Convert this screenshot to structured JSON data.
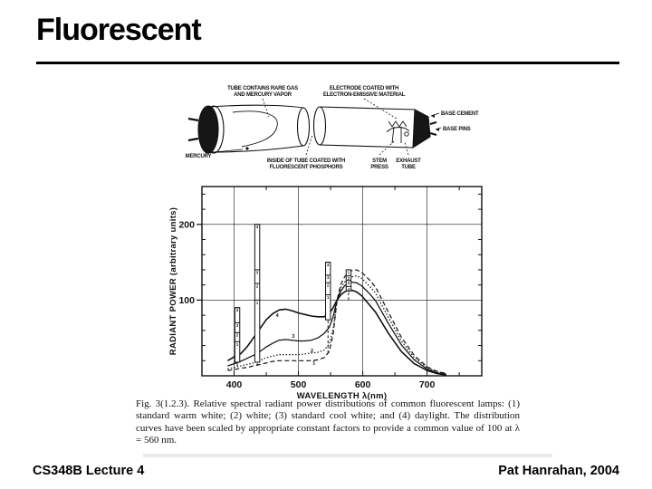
{
  "slide": {
    "title": "Fluorescent",
    "footer_left": "CS348B Lecture 4",
    "footer_right": "Pat Hanrahan, 2004"
  },
  "lamp_diagram": {
    "labels": {
      "tube_gas": [
        "TUBE CONTAINS RARE GAS",
        "AND MERCURY VAPOR"
      ],
      "electrode": [
        "ELECTRODE COATED WITH",
        "ELECTRON-EMISSIVE MATERIAL"
      ],
      "base_cement": [
        "BASE CEMENT"
      ],
      "base_pins": [
        "BASE PINS"
      ],
      "mercury": [
        "MERCURY"
      ],
      "phosphor": [
        "INSIDE OF TUBE COATED WITH",
        "FLUORESCENT PHOSPHORS"
      ],
      "stem_press": [
        "STEM",
        "PRESS"
      ],
      "exhaust_tube": [
        "EXHAUST",
        "TUBE"
      ]
    }
  },
  "figure_caption": "Fig. 3(1.2.3).  Relative spectral radiant power distributions of common fluorescent lamps: (1) standard warm white; (2) white; (3) standard cool white; and (4) daylight. The distribution curves have been scaled by appropriate constant factors to provide a common value of 100 at λ = 560 nm.",
  "chart_data": {
    "type": "line",
    "title": "",
    "xlabel": "WAVELENGTH λ(nm)",
    "ylabel": "RADIANT POWER (arbitrary units)",
    "xlim": [
      350,
      785
    ],
    "ylim": [
      0,
      250
    ],
    "x_ticks_major": [
      400,
      500,
      600,
      700
    ],
    "x_ticks_minor": [
      450,
      550,
      650,
      750
    ],
    "y_ticks_major": [
      100,
      200
    ],
    "y_ticks_minor": [
      20,
      40,
      60,
      80,
      120,
      140,
      160,
      180,
      220,
      240
    ],
    "grid": true,
    "legend_position": "none",
    "ink_color": "#111111",
    "x_shared": [
      390,
      400,
      410,
      420,
      430,
      440,
      450,
      460,
      470,
      480,
      490,
      500,
      510,
      520,
      530,
      540,
      548,
      554,
      560,
      566,
      572,
      580,
      590,
      598,
      610,
      620,
      640,
      660,
      680,
      700,
      715,
      730
    ],
    "series": [
      {
        "name": "(1) standard warm white",
        "label": "1",
        "style": "dashed",
        "dash": "5,3",
        "width": 1.2,
        "label_at": [
          524,
          15
        ],
        "y": [
          7,
          8,
          10,
          11,
          13,
          15,
          17,
          19,
          20,
          20,
          20,
          20,
          20,
          20,
          21,
          24,
          32,
          55,
          100,
          121,
          131,
          138,
          140,
          137,
          127,
          117,
          84,
          51,
          27,
          12,
          6,
          3
        ]
      },
      {
        "name": "(2) white",
        "label": "2",
        "style": "dotted",
        "dash": "1.5,2",
        "width": 1.2,
        "label_at": [
          521,
          31
        ],
        "y": [
          9,
          11,
          13,
          15,
          17,
          20,
          24,
          26,
          28,
          28,
          28,
          28,
          29,
          30,
          31,
          34,
          42,
          62,
          100,
          116,
          124,
          130,
          132,
          129,
          119,
          109,
          77,
          46,
          24,
          11,
          5,
          2
        ]
      },
      {
        "name": "(3) standard cool white",
        "label": "3",
        "style": "solid",
        "dash": "",
        "width": 1.25,
        "label_at": [
          492,
          50
        ],
        "y": [
          13,
          16,
          19,
          23,
          27,
          32,
          38,
          43,
          47,
          48,
          47,
          46,
          46,
          47,
          50,
          56,
          64,
          78,
          100,
          112,
          119,
          124,
          123,
          119,
          109,
          99,
          69,
          41,
          21,
          9,
          4,
          2
        ]
      },
      {
        "name": "(4) daylight",
        "label": "4",
        "style": "solid",
        "dash": "",
        "width": 1.6,
        "label_at": [
          467,
          78
        ],
        "y": [
          20,
          25,
          29,
          38,
          50,
          62,
          74,
          82,
          87,
          88,
          86,
          83,
          81,
          79,
          78,
          78,
          82,
          90,
          100,
          107,
          111,
          114,
          111,
          106,
          94,
          84,
          56,
          32,
          16,
          7,
          3,
          1
        ]
      }
    ],
    "mercury_emission_lines": [
      {
        "wavelength": 405,
        "bar_base": 18,
        "dash_to": 13,
        "segments": [
          {
            "label": "1",
            "top": 45
          },
          {
            "label": "2",
            "top": 57
          },
          {
            "label": "3",
            "top": 70
          },
          {
            "label": "4",
            "top": 90
          }
        ]
      },
      {
        "wavelength": 436,
        "bar_base": 18,
        "dash_to": 13,
        "segments": [
          {
            "label": "1",
            "top": 100
          },
          {
            "label": "2",
            "top": 122
          },
          {
            "label": "3",
            "top": 140
          },
          {
            "label": "4",
            "top": 200
          }
        ]
      },
      {
        "wavelength": 546,
        "bar_base": 74,
        "dash_to": 30,
        "segments": [
          {
            "label": "1",
            "top": 107
          },
          {
            "label": "2",
            "top": 123
          },
          {
            "label": "3",
            "top": 133
          },
          {
            "label": "4",
            "top": 150
          }
        ]
      },
      {
        "wavelength": 578,
        "bar_base": 112,
        "dash_to": 100,
        "segments": [
          {
            "label": "4",
            "top": 118
          },
          {
            "label": "3",
            "top": 126
          },
          {
            "label": "2",
            "top": 132
          },
          {
            "label": "1",
            "top": 140
          }
        ]
      }
    ]
  }
}
